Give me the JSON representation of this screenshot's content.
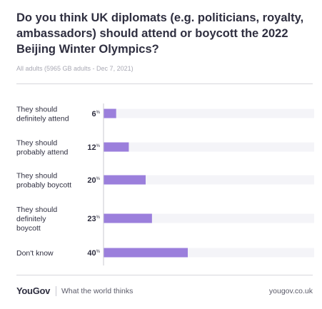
{
  "header": {
    "title": "Do you think UK diplomats (e.g. politicians, royalty, ambassadors) should attend or boycott the 2022 Beijing Winter Olympics?",
    "subtitle": "All adults (5965 GB adults - Dec 7, 2021)"
  },
  "chart_data": {
    "type": "bar",
    "orientation": "horizontal",
    "categories": [
      [
        "They should",
        "definitely attend"
      ],
      [
        "They should",
        "probably attend"
      ],
      [
        "They should",
        "probably boycott"
      ],
      [
        "They should",
        "definitely",
        "boycott"
      ],
      [
        "Don't know"
      ]
    ],
    "values": [
      6,
      12,
      20,
      23,
      40
    ],
    "value_suffix": "%",
    "xlim": [
      0,
      100
    ],
    "grid": false,
    "colors": {
      "bar": "#9b7fdc",
      "track": "#f4f4f8",
      "axis": "#c9c9d1"
    }
  },
  "footer": {
    "brand": "YouGov",
    "tagline": "What the world thinks",
    "site": "yougov.co.uk"
  }
}
